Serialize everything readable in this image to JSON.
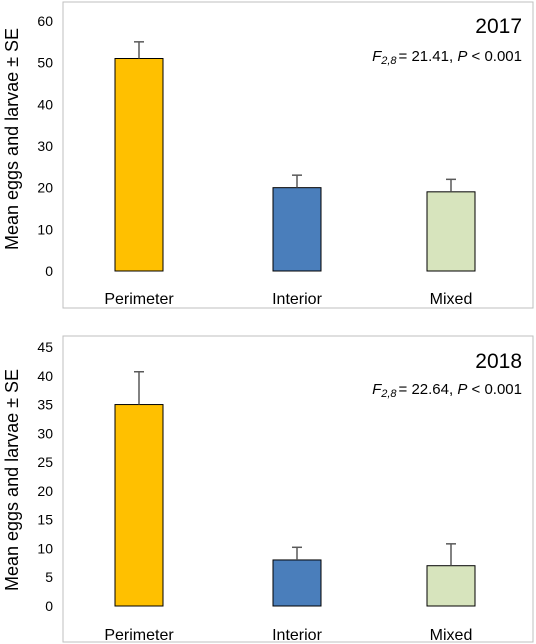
{
  "colors": {
    "perimeter": "#ffc000",
    "interior": "#4a7ebb",
    "mixed": "#d7e4bd",
    "frame": "#bfbfbf",
    "bar_outline": "#000000",
    "error_bar": "#595959",
    "text": "#000000"
  },
  "chart_data": [
    {
      "type": "bar",
      "title": "2017",
      "stat": {
        "F_label": "F",
        "df": "2,8",
        "F_value": "= 21.41, ",
        "P_label": "P",
        "P_value": " < 0.001"
      },
      "categories": [
        "Perimeter",
        "Interior",
        "Mixed"
      ],
      "values": [
        51,
        20,
        19
      ],
      "errors": [
        4,
        3,
        3
      ],
      "ylabel": "Mean eggs and larvae ± SE",
      "ylim": [
        0,
        60
      ],
      "yticks": [
        0,
        10,
        20,
        30,
        40,
        50,
        60
      ],
      "grid": false
    },
    {
      "type": "bar",
      "title": "2018",
      "stat": {
        "F_label": "F",
        "df": "2,8",
        "F_value": "= 22.64, ",
        "P_label": "P",
        "P_value": " < 0.001"
      },
      "categories": [
        "Perimeter",
        "Interior",
        "Mixed"
      ],
      "values": [
        35,
        8,
        7
      ],
      "errors": [
        5.7,
        2.2,
        3.8
      ],
      "ylabel": "Mean eggs and larvae ± SE",
      "ylim": [
        0,
        45
      ],
      "yticks": [
        0,
        5,
        10,
        15,
        20,
        25,
        30,
        35,
        40,
        45
      ],
      "grid": false
    }
  ]
}
